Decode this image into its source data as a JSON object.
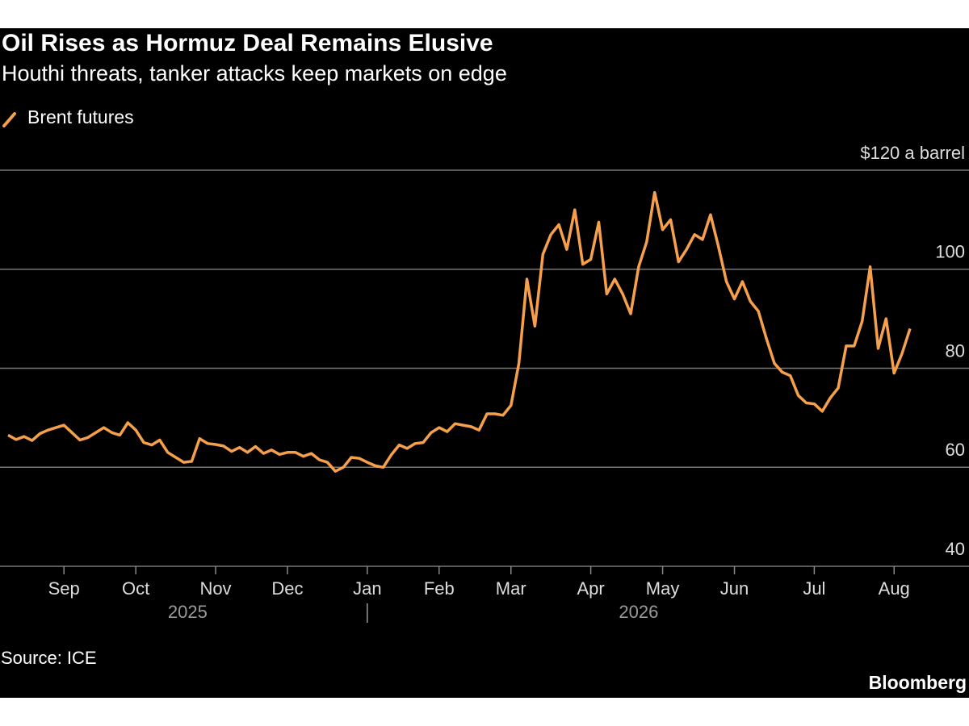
{
  "chart_data": {
    "type": "line",
    "title": "Oil Rises as Hormuz Deal Remains Elusive",
    "subtitle": "Houthi threats, tanker attacks keep markets on edge",
    "source": "Source: ICE",
    "brand": "Bloomberg",
    "categories": [
      null,
      null,
      null,
      null,
      null,
      null,
      null,
      "Sep",
      null,
      null,
      null,
      null,
      null,
      null,
      null,
      null,
      "Oct",
      null,
      null,
      null,
      null,
      null,
      null,
      null,
      null,
      null,
      "Nov",
      null,
      null,
      null,
      null,
      null,
      null,
      null,
      null,
      "Dec",
      null,
      null,
      null,
      null,
      null,
      null,
      null,
      null,
      null,
      "Jan",
      null,
      null,
      null,
      null,
      null,
      null,
      null,
      null,
      "Feb",
      null,
      null,
      null,
      null,
      null,
      null,
      null,
      null,
      "Mar",
      null,
      null,
      null,
      null,
      null,
      null,
      null,
      null,
      null,
      "Apr",
      null,
      null,
      null,
      null,
      null,
      null,
      null,
      null,
      "May",
      null,
      null,
      null,
      null,
      null,
      null,
      null,
      null,
      "Jun",
      null,
      null,
      null,
      null,
      null,
      null,
      null,
      null,
      null,
      "Jul",
      null,
      null,
      null,
      null,
      null,
      null,
      null,
      null,
      null,
      "Aug",
      null,
      null
    ],
    "years": [
      {
        "label": "2025",
        "count": 45
      },
      {
        "label": "2026",
        "count": 69
      }
    ],
    "series": [
      {
        "name": "Brent futures",
        "color": "#f7a04b",
        "values": [
          66.5,
          65.6,
          66.2,
          65.4,
          66.8,
          67.5,
          68.0,
          68.5,
          67.0,
          65.5,
          66.0,
          67.0,
          68.0,
          67.0,
          66.5,
          69.0,
          67.5,
          65.0,
          64.5,
          65.5,
          63.0,
          62.0,
          61.0,
          61.2,
          65.8,
          64.8,
          64.6,
          64.3,
          63.2,
          64.0,
          63.0,
          64.2,
          62.8,
          63.5,
          62.6,
          63.0,
          63.0,
          62.2,
          62.8,
          61.5,
          61.0,
          59.2,
          60.0,
          62.0,
          61.8,
          61.0,
          60.3,
          60.0,
          62.5,
          64.5,
          63.8,
          64.8,
          65.0,
          67.0,
          68.0,
          67.2,
          68.8,
          68.5,
          68.2,
          67.5,
          70.8,
          70.8,
          70.5,
          72.5,
          81.0,
          98.0,
          88.5,
          103.0,
          107.0,
          109.0,
          104.0,
          112.0,
          101.0,
          102.0,
          109.5,
          95.0,
          98.0,
          95.0,
          91.0,
          100.5,
          105.5,
          115.5,
          108.0,
          110.0,
          101.5,
          104.0,
          107.0,
          106.0,
          111.0,
          104.5,
          97.5,
          94.0,
          97.5,
          93.5,
          91.5,
          86.0,
          81.0,
          79.2,
          78.5,
          74.5,
          73.0,
          72.8,
          71.3,
          74.0,
          76.0,
          84.5,
          84.5,
          89.5,
          100.5,
          84.0,
          90.0,
          79.0,
          83.0,
          88.0
        ]
      }
    ],
    "ylim": [
      40,
      120
    ],
    "yticks": [
      40,
      60,
      80,
      100,
      {
        "value": 120,
        "label": "$120 a barrel"
      }
    ],
    "grid": true
  }
}
